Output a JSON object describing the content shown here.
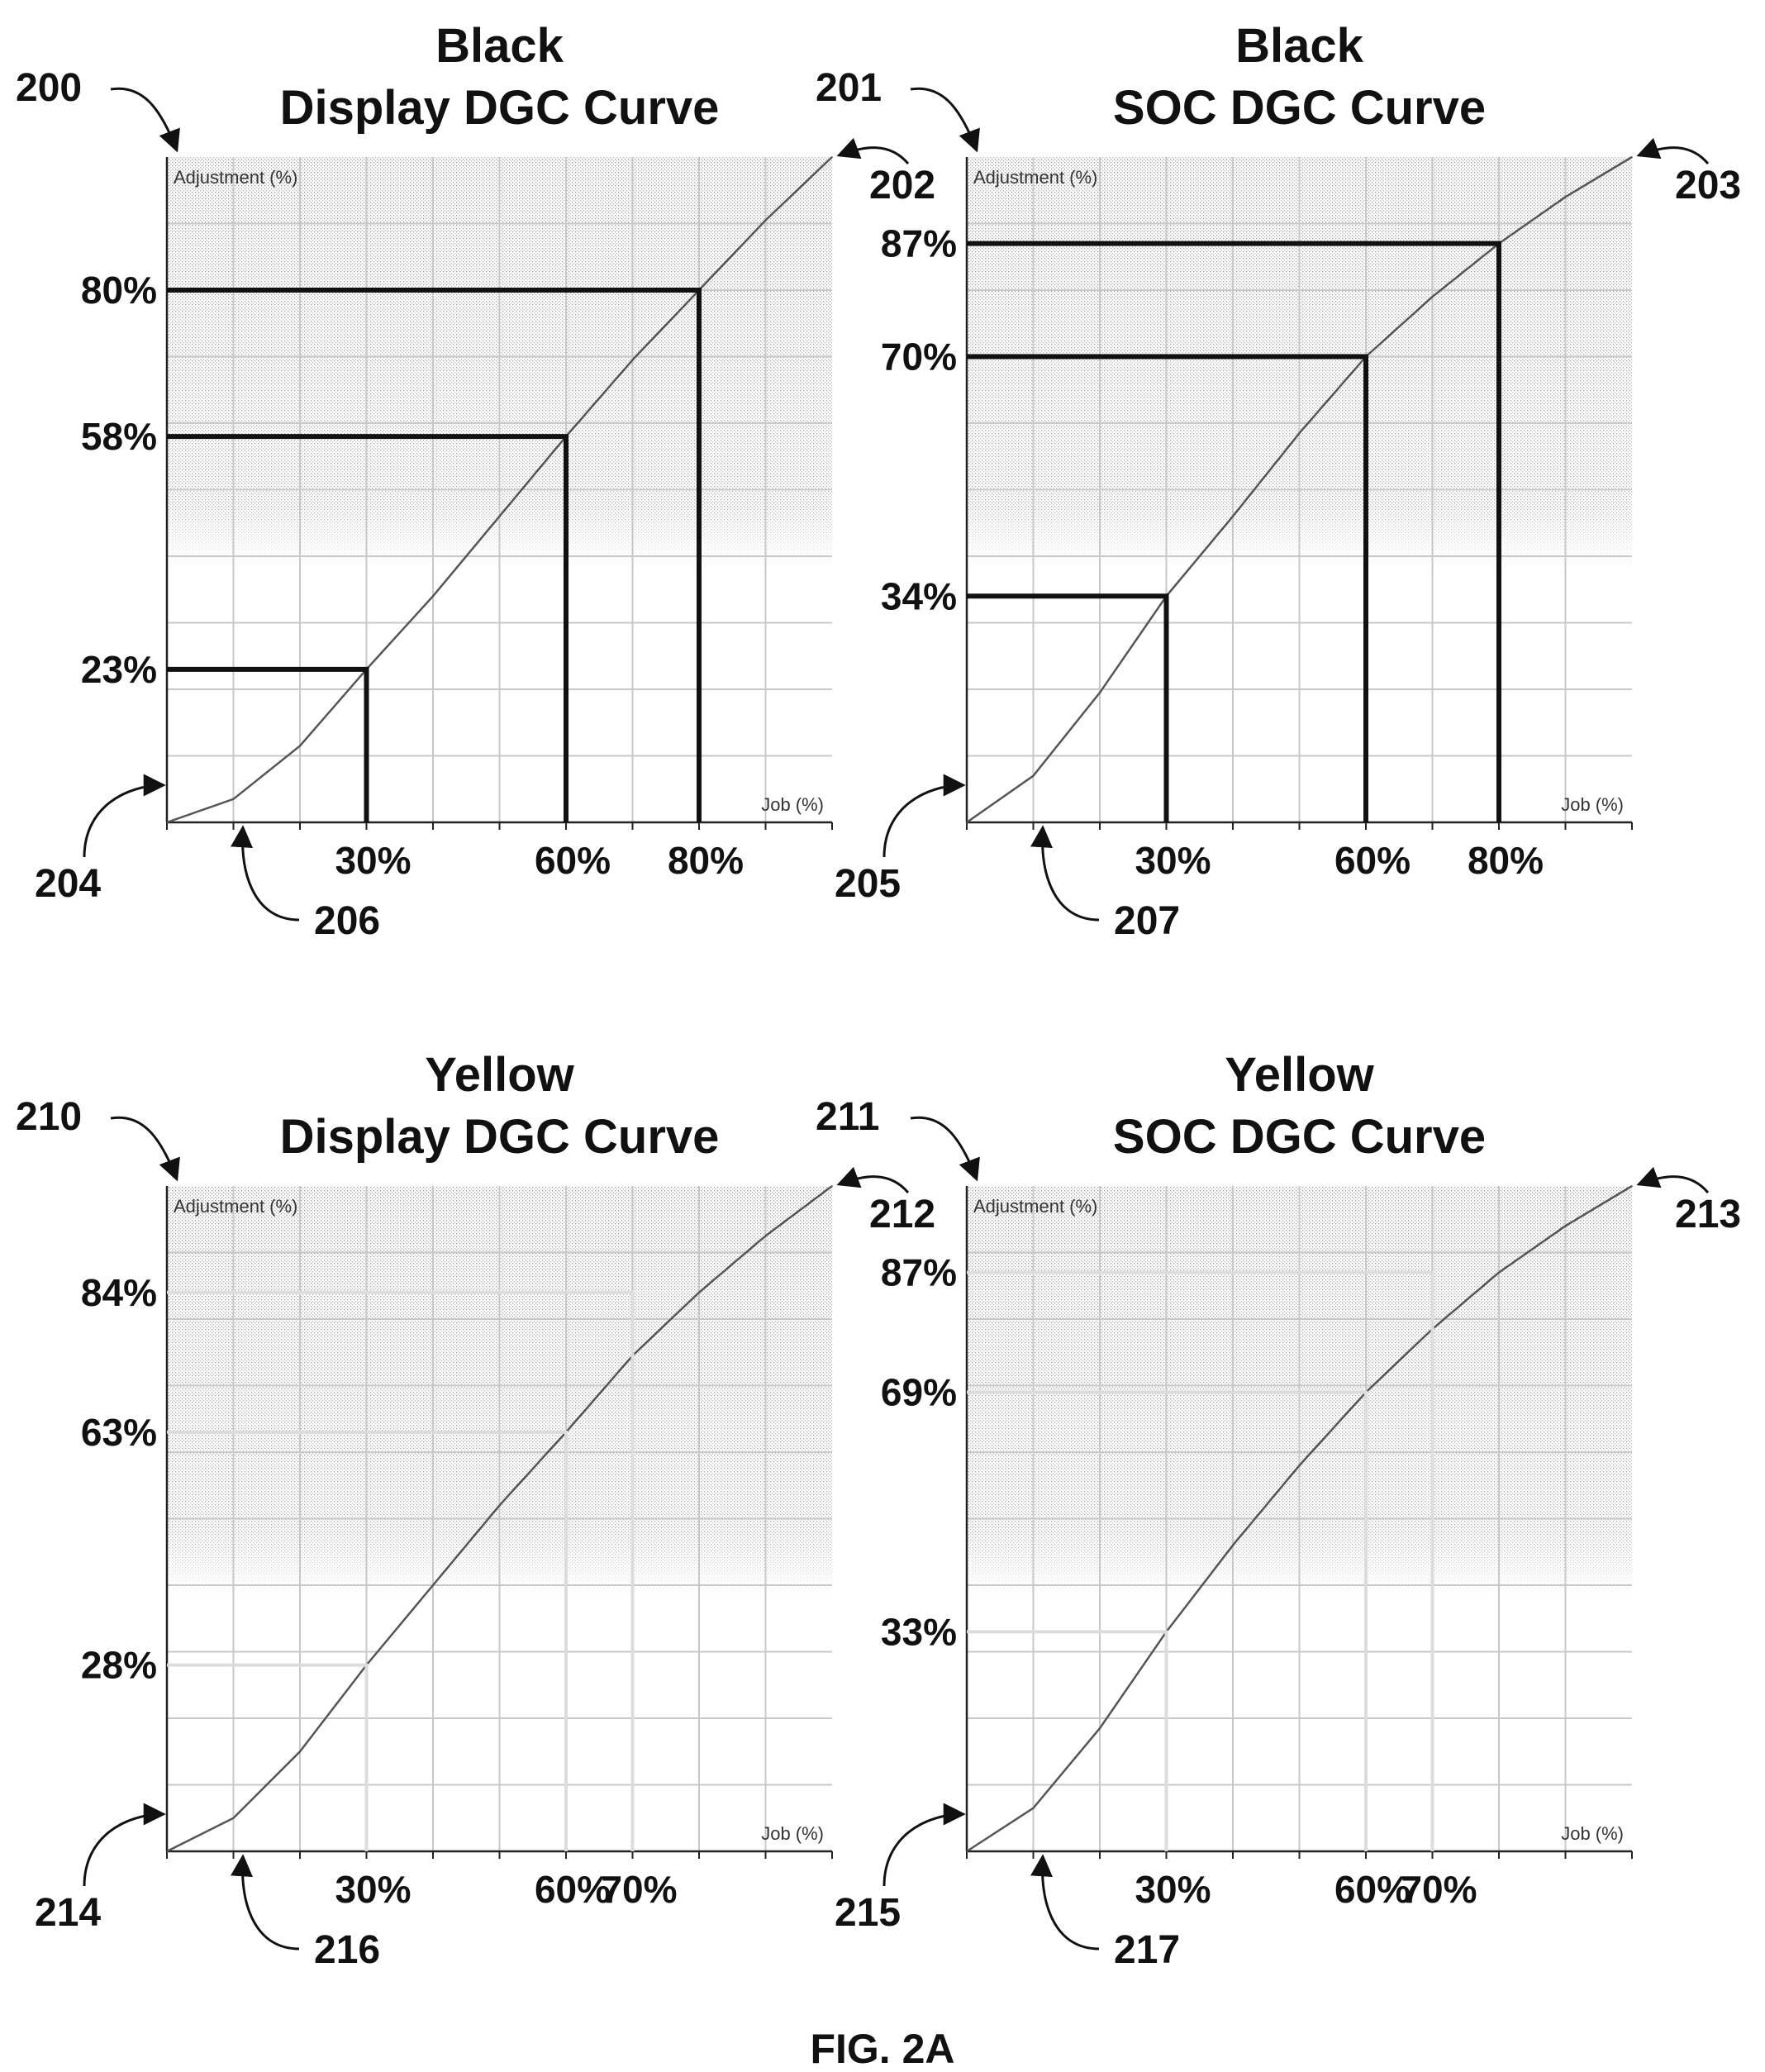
{
  "figure_label": "FIG. 2A",
  "chart_data": [
    {
      "type": "line",
      "title_line1": "Black",
      "title_line2": "Display DGC Curve",
      "xlabel": "Job (%)",
      "ylabel": "Adjustment (%)",
      "xlim": [
        0,
        100
      ],
      "ylim": [
        0,
        100
      ],
      "grid": true,
      "series": [
        {
          "x": [
            0,
            10,
            20,
            30,
            40,
            50,
            60,
            70,
            80,
            90,
            100
          ],
          "y": [
            0,
            3.5,
            11.5,
            23,
            34,
            46,
            58,
            69.5,
            80,
            90.5,
            100
          ]
        }
      ],
      "markers": [
        {
          "x": 30,
          "y": 23,
          "x_label": "30%",
          "y_label": "23%"
        },
        {
          "x": 60,
          "y": 58,
          "x_label": "60%",
          "y_label": "58%"
        },
        {
          "x": 80,
          "y": 80,
          "x_label": "80%",
          "y_label": "80%"
        }
      ],
      "refs": {
        "panel": "200",
        "top": "202",
        "origin": "204",
        "axis": "206"
      },
      "guides_visible": true
    },
    {
      "type": "line",
      "title_line1": "Black",
      "title_line2": "SOC DGC Curve",
      "xlabel": "Job (%)",
      "ylabel": "Adjustment (%)",
      "xlim": [
        0,
        100
      ],
      "ylim": [
        0,
        100
      ],
      "grid": true,
      "series": [
        {
          "x": [
            0,
            10,
            20,
            30,
            40,
            50,
            60,
            70,
            80,
            90,
            100
          ],
          "y": [
            0,
            7,
            19.5,
            34,
            46,
            58.5,
            70,
            79,
            87,
            94,
            100
          ]
        }
      ],
      "markers": [
        {
          "x": 30,
          "y": 34,
          "x_label": "30%",
          "y_label": "34%"
        },
        {
          "x": 60,
          "y": 70,
          "x_label": "60%",
          "y_label": "70%"
        },
        {
          "x": 80,
          "y": 87,
          "x_label": "80%",
          "y_label": "87%"
        }
      ],
      "refs": {
        "panel": "201",
        "top": "203",
        "origin": "205",
        "axis": "207"
      },
      "guides_visible": true
    },
    {
      "type": "line",
      "title_line1": "Yellow",
      "title_line2": "Display DGC Curve",
      "xlabel": "Job (%)",
      "ylabel": "Adjustment (%)",
      "xlim": [
        0,
        100
      ],
      "ylim": [
        0,
        100
      ],
      "grid": true,
      "series": [
        {
          "x": [
            0,
            10,
            20,
            30,
            40,
            50,
            60,
            70,
            80,
            90,
            100
          ],
          "y": [
            0,
            5,
            15,
            28,
            40,
            52,
            63,
            74.5,
            84,
            92.5,
            100
          ]
        }
      ],
      "markers": [
        {
          "x": 30,
          "y": 28,
          "x_label": "30%",
          "y_label": "28%"
        },
        {
          "x": 60,
          "y": 63,
          "x_label": "60%",
          "y_label": "63%"
        },
        {
          "x": 70,
          "y": 84,
          "x_label": "70%",
          "y_label": "84%"
        }
      ],
      "refs": {
        "panel": "210",
        "top": "212",
        "origin": "214",
        "axis": "216"
      },
      "guides_visible": false
    },
    {
      "type": "line",
      "title_line1": "Yellow",
      "title_line2": "SOC DGC Curve",
      "xlabel": "Job (%)",
      "ylabel": "Adjustment (%)",
      "xlim": [
        0,
        100
      ],
      "ylim": [
        0,
        100
      ],
      "grid": true,
      "series": [
        {
          "x": [
            0,
            10,
            20,
            30,
            40,
            50,
            60,
            70,
            80,
            90,
            100
          ],
          "y": [
            0,
            6.5,
            18.5,
            33,
            46,
            58,
            69,
            78.5,
            87,
            94,
            100
          ]
        }
      ],
      "markers": [
        {
          "x": 30,
          "y": 33,
          "x_label": "30%",
          "y_label": "33%"
        },
        {
          "x": 60,
          "y": 69,
          "x_label": "60%",
          "y_label": "69%"
        },
        {
          "x": 70,
          "y": 87,
          "x_label": "70%",
          "y_label": "87%"
        }
      ],
      "refs": {
        "panel": "211",
        "top": "213",
        "origin": "215",
        "axis": "217"
      },
      "guides_visible": false
    }
  ]
}
